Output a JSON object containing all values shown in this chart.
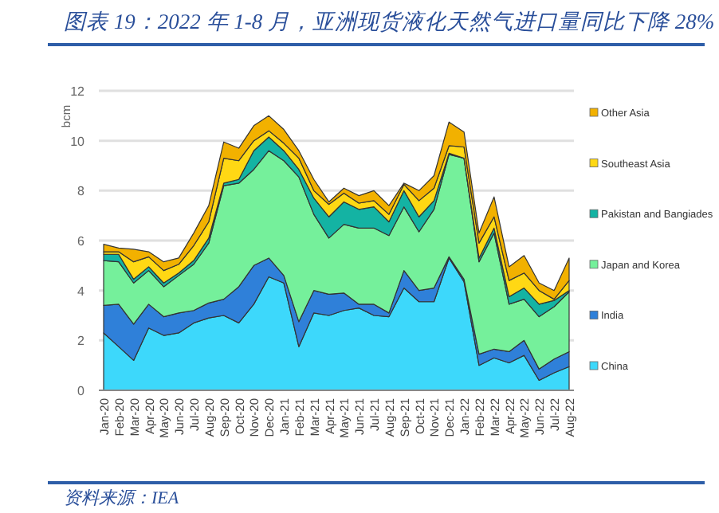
{
  "chart_data": {
    "type": "area",
    "stacked": true,
    "title": "图表 19：2022 年 1-8 月，亚洲现货液化天然气进口量同比下降 28%",
    "annotations": [
      "资料来源：IEA"
    ],
    "ylabel": "bcm",
    "ylim": [
      0,
      12
    ],
    "yticks": [
      0,
      2,
      4,
      6,
      8,
      10,
      12
    ],
    "grid": "y",
    "legend": "right",
    "categories": [
      "Jan-20",
      "Feb-20",
      "Mar-20",
      "Apr-20",
      "May-20",
      "Jun-20",
      "Jul-20",
      "Aug-20",
      "Sep-20",
      "Oct-20",
      "Nov-20",
      "Dec-20",
      "Jan-21",
      "Feb-21",
      "Mar-21",
      "Apr-21",
      "May-21",
      "Jun-21",
      "Jul-21",
      "Aug-21",
      "Sep-21",
      "Oct-21",
      "Nov-21",
      "Dec-21",
      "Jan-22",
      "Feb-22",
      "Mar-22",
      "Apr-22",
      "May-22",
      "Jun-22",
      "Jul-22",
      "Aug-22"
    ],
    "series": [
      {
        "name": "China",
        "color": "#3dd8fb",
        "values": [
          2.3,
          1.75,
          1.2,
          2.5,
          2.2,
          2.3,
          2.7,
          2.9,
          3.0,
          2.7,
          3.45,
          4.55,
          4.3,
          1.75,
          3.1,
          3.0,
          3.2,
          3.3,
          3.0,
          2.95,
          4.1,
          3.55,
          3.55,
          5.3,
          4.35,
          1.0,
          1.3,
          1.1,
          1.4,
          0.4,
          0.7,
          0.95
        ]
      },
      {
        "name": "India",
        "color": "#2f80d9",
        "values": [
          1.1,
          1.7,
          1.45,
          0.95,
          0.75,
          0.8,
          0.5,
          0.6,
          0.65,
          1.45,
          1.55,
          0.75,
          0.3,
          1.0,
          0.9,
          0.85,
          0.7,
          0.15,
          0.45,
          0.15,
          0.7,
          0.45,
          0.55,
          0.05,
          0.1,
          0.45,
          0.35,
          0.45,
          0.6,
          0.45,
          0.55,
          0.6
        ]
      },
      {
        "name": "Japan and Korea",
        "color": "#75f09b",
        "values": [
          1.8,
          1.7,
          1.65,
          1.35,
          1.2,
          1.5,
          1.85,
          2.4,
          4.55,
          4.15,
          3.85,
          4.3,
          4.6,
          5.8,
          3.05,
          2.25,
          2.75,
          3.05,
          3.05,
          3.1,
          2.55,
          2.35,
          3.15,
          4.1,
          4.85,
          3.7,
          4.65,
          1.9,
          1.65,
          2.1,
          2.1,
          2.4
        ]
      },
      {
        "name": "Pakistan and Bangiades",
        "color": "#14b3a3",
        "values": [
          0.25,
          0.3,
          0.15,
          0.15,
          0.15,
          0.1,
          0.15,
          0.2,
          0.1,
          0.15,
          0.75,
          0.55,
          0.4,
          0.3,
          0.65,
          0.85,
          0.9,
          0.75,
          0.85,
          0.55,
          0.65,
          0.6,
          0.35,
          0.05,
          0,
          0.15,
          0.2,
          0.3,
          0.45,
          0.5,
          0.25,
          0.05
        ]
      },
      {
        "name": "Southeast Asia",
        "color": "#ffd814",
        "values": [
          0.1,
          0.1,
          0.7,
          0.4,
          0.5,
          0.35,
          0.6,
          0.65,
          1.0,
          0.75,
          0.4,
          0.25,
          0.3,
          0.45,
          0.3,
          0.5,
          0.35,
          0.25,
          0.25,
          0.3,
          0.25,
          0.65,
          0.5,
          0.3,
          0.45,
          0.6,
          0.45,
          0.65,
          0.6,
          0.55,
          0.05,
          0.4
        ]
      },
      {
        "name": "Other Asia",
        "color": "#f2b100",
        "values": [
          0.3,
          0.15,
          0.5,
          0.2,
          0.35,
          0.25,
          0.5,
          0.65,
          0.65,
          0.5,
          0.6,
          0.6,
          0.55,
          0.3,
          0.45,
          0.1,
          0.2,
          0.3,
          0.4,
          0.35,
          0.05,
          0.4,
          0.5,
          0.95,
          0.6,
          0.4,
          0.8,
          0.55,
          0.7,
          0.3,
          0.35,
          0.9
        ]
      }
    ]
  }
}
